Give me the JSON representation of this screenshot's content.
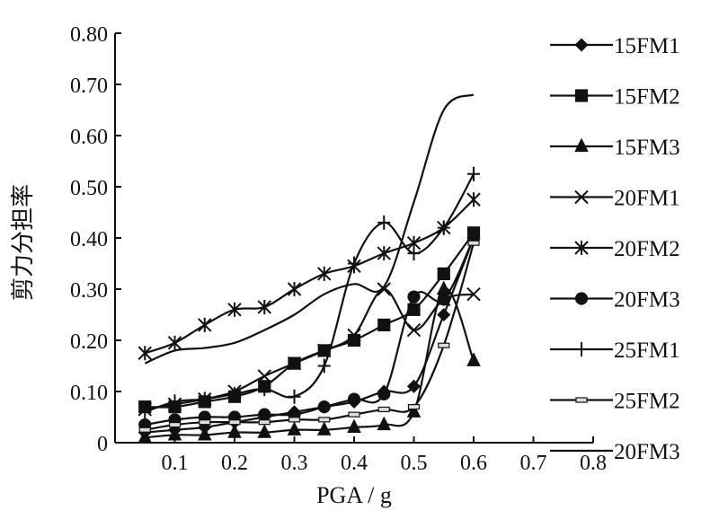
{
  "chart_data": {
    "type": "line",
    "title": "",
    "xlabel": "PGA / g",
    "ylabel": "剪力分担率",
    "xlim": [
      0,
      0.8
    ],
    "ylim": [
      0,
      0.8
    ],
    "x_ticks": [
      "0.1",
      "0.2",
      "0.3",
      "0.4",
      "0.5",
      "0.6",
      "0.7",
      "0.8"
    ],
    "y_ticks": [
      "0",
      "0.10",
      "0.20",
      "0.30",
      "0.40",
      "0.50",
      "0.60",
      "0.70",
      "0.80"
    ],
    "grid": false,
    "legend_position": "right",
    "x": [
      0.05,
      0.1,
      0.15,
      0.2,
      0.25,
      0.3,
      0.35,
      0.4,
      0.45,
      0.5,
      0.55,
      0.6
    ],
    "series": [
      {
        "name": "15FM1",
        "marker": "diamond",
        "values": [
          0.02,
          0.025,
          0.03,
          0.04,
          0.05,
          0.06,
          0.07,
          0.08,
          0.1,
          0.11,
          0.25,
          0.4
        ]
      },
      {
        "name": "15FM2",
        "marker": "square",
        "values": [
          0.07,
          0.07,
          0.08,
          0.09,
          0.11,
          0.155,
          0.18,
          0.2,
          0.23,
          0.26,
          0.33,
          0.41
        ]
      },
      {
        "name": "15FM3",
        "marker": "triangle",
        "values": [
          0.01,
          0.015,
          0.015,
          0.02,
          0.02,
          0.025,
          0.025,
          0.03,
          0.035,
          0.06,
          0.3,
          0.16
        ]
      },
      {
        "name": "20FM1",
        "marker": "x",
        "values": [
          0.065,
          0.075,
          0.085,
          0.1,
          0.13,
          0.155,
          0.18,
          0.21,
          0.3,
          0.22,
          0.28,
          0.29
        ]
      },
      {
        "name": "20FM2",
        "marker": "asterisk",
        "values": [
          0.175,
          0.195,
          0.23,
          0.26,
          0.265,
          0.3,
          0.33,
          0.345,
          0.37,
          0.39,
          0.42,
          0.475
        ]
      },
      {
        "name": "20FM3",
        "marker": "circle",
        "values": [
          0.035,
          0.045,
          0.05,
          0.05,
          0.055,
          0.055,
          0.07,
          0.085,
          0.095,
          0.285,
          0.28,
          0.4
        ]
      },
      {
        "name": "25FM1",
        "marker": "plus",
        "values": [
          0.06,
          0.08,
          0.085,
          0.095,
          0.105,
          0.09,
          0.15,
          0.35,
          0.43,
          0.37,
          0.42,
          0.525
        ]
      },
      {
        "name": "25FM2",
        "marker": "dash",
        "values": [
          0.025,
          0.035,
          0.04,
          0.04,
          0.04,
          0.045,
          0.045,
          0.055,
          0.065,
          0.07,
          0.19,
          0.39
        ]
      },
      {
        "name": "20FM3",
        "marker": "none",
        "values": [
          0.155,
          0.18,
          0.185,
          0.195,
          0.22,
          0.25,
          0.29,
          0.31,
          0.305,
          0.47,
          0.65,
          0.68
        ]
      }
    ]
  }
}
